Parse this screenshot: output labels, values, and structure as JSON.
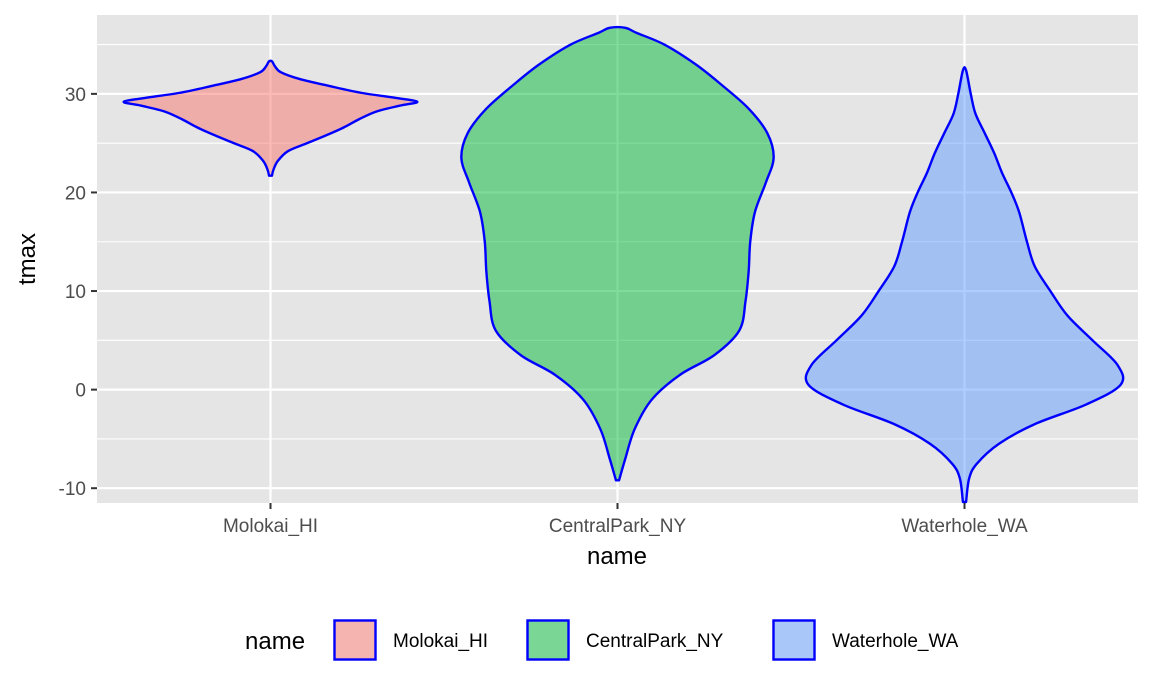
{
  "chart_data": {
    "type": "violin",
    "title": "",
    "xlabel": "name",
    "ylabel": "tmax",
    "ylim": [
      -11.5,
      38
    ],
    "y_ticks": [
      -10,
      0,
      10,
      20,
      30
    ],
    "y_tick_labels": [
      "-10",
      "0",
      "10",
      "20",
      "30"
    ],
    "grid": true,
    "categories": [
      "Molokai_HI",
      "CentralPark_NY",
      "Waterhole_WA"
    ],
    "outline_color": "#0000ff",
    "panel_background": "#e5e5e5",
    "series": [
      {
        "name": "Molokai_HI",
        "fill": "#f8766d",
        "width_scale": 0.94,
        "y_min": 21.7,
        "y_max": 33.3,
        "profile": [
          [
            21.7,
            0.01
          ],
          [
            22.3,
            0.02
          ],
          [
            23.2,
            0.05
          ],
          [
            24.2,
            0.12
          ],
          [
            25.0,
            0.25
          ],
          [
            25.8,
            0.38
          ],
          [
            26.6,
            0.5
          ],
          [
            27.4,
            0.6
          ],
          [
            28.2,
            0.72
          ],
          [
            28.8,
            0.88
          ],
          [
            29.2,
            1.0
          ],
          [
            29.6,
            0.85
          ],
          [
            30.1,
            0.62
          ],
          [
            30.8,
            0.4
          ],
          [
            31.5,
            0.2
          ],
          [
            32.2,
            0.07
          ],
          [
            32.8,
            0.03
          ],
          [
            33.3,
            0.01
          ]
        ]
      },
      {
        "name": "CentralPark_NY",
        "fill": "#00ba38",
        "width_scale": 1.0,
        "y_min": -9.2,
        "y_max": 36.7,
        "profile": [
          [
            -9.2,
            0.01
          ],
          [
            -7.0,
            0.05
          ],
          [
            -4.0,
            0.11
          ],
          [
            -1.0,
            0.22
          ],
          [
            1.5,
            0.4
          ],
          [
            3.5,
            0.62
          ],
          [
            6.0,
            0.78
          ],
          [
            9.0,
            0.82
          ],
          [
            12.0,
            0.84
          ],
          [
            15.0,
            0.85
          ],
          [
            18.0,
            0.88
          ],
          [
            21.0,
            0.95
          ],
          [
            23.5,
            1.0
          ],
          [
            26.0,
            0.96
          ],
          [
            28.5,
            0.84
          ],
          [
            31.0,
            0.66
          ],
          [
            33.0,
            0.5
          ],
          [
            35.0,
            0.3
          ],
          [
            36.2,
            0.12
          ],
          [
            36.7,
            0.05
          ]
        ]
      },
      {
        "name": "Waterhole_WA",
        "fill": "#619cff",
        "width_scale": 1.0,
        "y_min": -11.4,
        "y_max": 32.4,
        "profile": [
          [
            -11.4,
            0.01
          ],
          [
            -9.0,
            0.03
          ],
          [
            -7.5,
            0.08
          ],
          [
            -5.5,
            0.22
          ],
          [
            -3.5,
            0.45
          ],
          [
            -1.5,
            0.78
          ],
          [
            0.5,
            1.0
          ],
          [
            2.5,
            0.98
          ],
          [
            5.0,
            0.82
          ],
          [
            7.5,
            0.66
          ],
          [
            10.0,
            0.55
          ],
          [
            12.5,
            0.45
          ],
          [
            15.0,
            0.4
          ],
          [
            18.0,
            0.35
          ],
          [
            20.0,
            0.3
          ],
          [
            22.0,
            0.24
          ],
          [
            24.0,
            0.19
          ],
          [
            26.0,
            0.13
          ],
          [
            28.0,
            0.07
          ],
          [
            30.0,
            0.04
          ],
          [
            32.4,
            0.01
          ]
        ]
      }
    ],
    "legend": {
      "title": "name",
      "position": "bottom",
      "entries": [
        "Molokai_HI",
        "CentralPark_NY",
        "Waterhole_WA"
      ]
    }
  }
}
